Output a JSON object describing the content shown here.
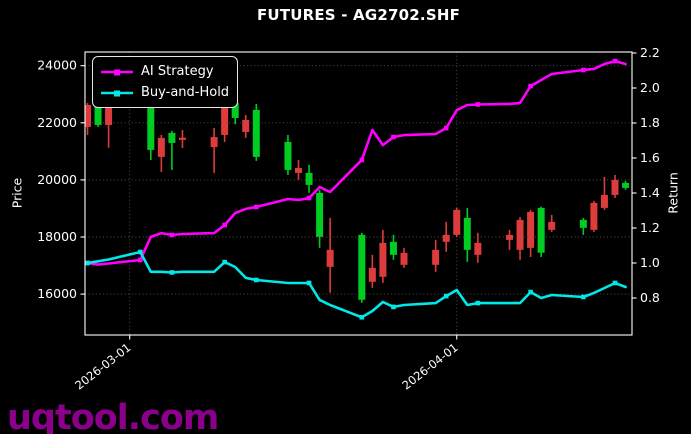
{
  "title": "FUTURES - AG2702.SHF",
  "watermark": "uqtool.com",
  "axes": {
    "left_label": "Price",
    "right_label": "Return",
    "price_ticks": [
      16000,
      18000,
      20000,
      22000,
      24000
    ],
    "return_ticks": [
      0.8,
      1.0,
      1.2,
      1.4,
      1.6,
      1.8,
      2.0,
      2.2
    ],
    "x_tick_labels": [
      "2026-03-01",
      "2026-04-01"
    ]
  },
  "colors": {
    "up": "#00CC22",
    "down": "#DC3C3C",
    "ai_line": "#FF00FF",
    "bh_line": "#00E8E8",
    "grid": "#9a9a9a",
    "foreground": "#ffffff",
    "background": "#000000",
    "watermark": "#8B008B"
  },
  "chart_data": {
    "type": "candlestick",
    "title": "FUTURES - AG2702.SHF",
    "ylabel": "Price",
    "y2label": "Return",
    "xtick_labels": [
      "2026-03-01",
      "2026-04-01"
    ],
    "ylim_price": [
      14560,
      24480
    ],
    "ylim_return": [
      0.589,
      2.206
    ],
    "grid": "dotted",
    "legend_position": "upper-left",
    "dates": [
      "2026-02-25",
      "2026-02-26",
      "2026-02-27",
      "2026-03-02",
      "2026-03-03",
      "2026-03-04",
      "2026-03-05",
      "2026-03-06",
      "2026-03-09",
      "2026-03-10",
      "2026-03-11",
      "2026-03-12",
      "2026-03-13",
      "2026-03-16",
      "2026-03-17",
      "2026-03-18",
      "2026-03-19",
      "2026-03-20",
      "2026-03-23",
      "2026-03-24",
      "2026-03-25",
      "2026-03-26",
      "2026-03-27",
      "2026-03-30",
      "2026-03-31",
      "2026-04-01",
      "2026-04-02",
      "2026-04-03",
      "2026-04-06",
      "2026-04-07",
      "2026-04-08",
      "2026-04-09",
      "2026-04-10",
      "2026-04-13",
      "2026-04-14",
      "2026-04-15",
      "2026-04-16",
      "2026-04-17"
    ],
    "ohlc": [
      [
        22625,
        22695,
        21575,
        21855
      ],
      [
        21925,
        22725,
        21855,
        22660
      ],
      [
        22555,
        22590,
        21125,
        21925
      ],
      [
        22900,
        23000,
        22720,
        22760
      ],
      [
        21050,
        22765,
        20700,
        22555
      ],
      [
        21470,
        21575,
        20280,
        20805
      ],
      [
        21295,
        21715,
        20350,
        21645
      ],
      [
        21480,
        21750,
        21120,
        21400
      ],
      [
        21500,
        21820,
        20245,
        21150
      ],
      [
        22520,
        22550,
        21330,
        21575
      ],
      [
        22170,
        22700,
        21950,
        22695
      ],
      [
        22100,
        22275,
        21470,
        21680
      ],
      [
        20805,
        22660,
        20665,
        22450
      ],
      [
        20350,
        21575,
        20175,
        21330
      ],
      [
        20420,
        20700,
        20000,
        20245
      ],
      [
        19825,
        20525,
        19545,
        20245
      ],
      [
        18005,
        19650,
        17620,
        19545
      ],
      [
        17550,
        18670,
        16045,
        16955
      ],
      [
        15800,
        18145,
        15695,
        18075
      ],
      [
        16920,
        17375,
        16220,
        16430
      ],
      [
        17795,
        18250,
        16395,
        16605
      ],
      [
        17375,
        18075,
        17200,
        17830
      ],
      [
        17445,
        17620,
        16920,
        17025
      ],
      [
        17550,
        17900,
        16780,
        17025
      ],
      [
        18075,
        18530,
        17480,
        17830
      ],
      [
        18950,
        19020,
        18005,
        18075
      ],
      [
        17550,
        19020,
        17130,
        18670
      ],
      [
        17795,
        18145,
        17095,
        17375
      ],
      [
        18075,
        18250,
        17550,
        17900
      ],
      [
        18600,
        18700,
        17200,
        17550
      ],
      [
        18880,
        18950,
        17300,
        17620
      ],
      [
        17450,
        19060,
        17300,
        19020
      ],
      [
        18530,
        18775,
        18180,
        18250
      ],
      [
        18320,
        18670,
        18075,
        18600
      ],
      [
        19195,
        19265,
        18180,
        18250
      ],
      [
        19475,
        20105,
        18950,
        19020
      ],
      [
        20000,
        20175,
        19370,
        19475
      ],
      [
        19720,
        19965,
        19650,
        19895
      ]
    ],
    "series": [
      {
        "name": "AI Strategy",
        "axis": "return",
        "color": "#FF00FF",
        "values": [
          1.0,
          0.991,
          0.997,
          1.017,
          1.149,
          1.171,
          1.16,
          1.166,
          1.171,
          1.217,
          1.286,
          1.309,
          1.32,
          1.366,
          1.36,
          1.371,
          1.434,
          1.406,
          1.589,
          1.76,
          1.674,
          1.72,
          1.731,
          1.737,
          1.771,
          1.874,
          1.903,
          1.906,
          1.909,
          1.914,
          2.011,
          2.046,
          2.08,
          2.103,
          2.109,
          2.137,
          2.154,
          2.137
        ]
      },
      {
        "name": "Buy-and-Hold",
        "axis": "return",
        "color": "#00E8E8",
        "values": [
          1.0,
          1.01,
          1.02,
          1.063,
          0.95,
          0.95,
          0.946,
          0.95,
          0.95,
          1.005,
          0.977,
          0.915,
          0.903,
          0.886,
          0.886,
          0.886,
          0.789,
          0.76,
          0.69,
          0.726,
          0.777,
          0.749,
          0.76,
          0.771,
          0.811,
          0.846,
          0.76,
          0.771,
          0.771,
          0.771,
          0.834,
          0.8,
          0.817,
          0.806,
          0.829,
          0.857,
          0.886,
          0.863
        ]
      }
    ]
  }
}
